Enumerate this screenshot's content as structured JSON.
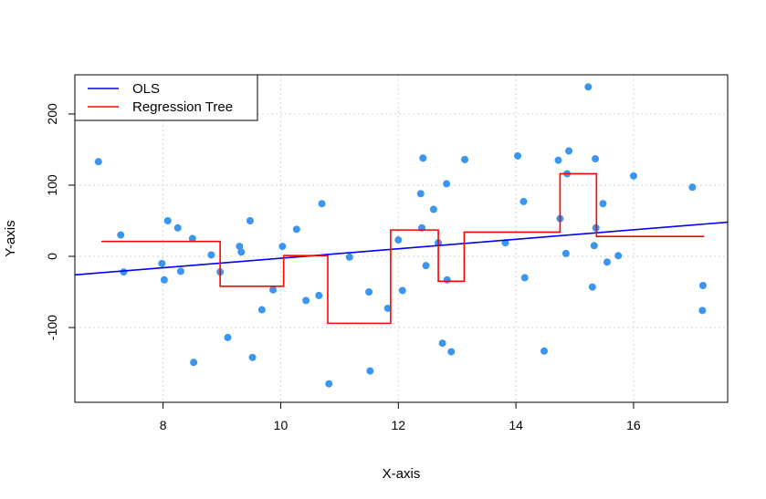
{
  "chart_data": {
    "type": "scatter",
    "title": "",
    "xlabel": "X-axis",
    "ylabel": "Y-axis",
    "xlim": [
      6.5,
      17.6
    ],
    "ylim": [
      -205,
      255
    ],
    "xticks": [
      8,
      10,
      12,
      14,
      16
    ],
    "yticks": [
      -100,
      0,
      100,
      200
    ],
    "grid": true,
    "legend_position": "top-left",
    "colors": {
      "points": "#3a96f0",
      "ols": "#0000ff",
      "tree": "#ff0000",
      "grid": "#d3d3d3"
    },
    "legend": [
      {
        "label": "OLS",
        "color": "#0000ff"
      },
      {
        "label": "Regression Tree",
        "color": "#ff0000"
      }
    ],
    "points": {
      "x": [
        6.9,
        7.28,
        7.33,
        7.98,
        8.02,
        8.08,
        8.25,
        8.3,
        8.5,
        8.52,
        8.82,
        8.97,
        9.1,
        9.3,
        9.33,
        9.48,
        9.52,
        9.68,
        9.87,
        10.03,
        10.27,
        10.43,
        10.65,
        10.7,
        10.82,
        11.17,
        11.5,
        11.52,
        11.82,
        12.0,
        12.07,
        12.38,
        12.4,
        12.42,
        12.47,
        12.6,
        12.68,
        12.75,
        12.82,
        12.83,
        12.9,
        13.13,
        13.82,
        14.03,
        14.13,
        14.15,
        14.48,
        14.72,
        14.75,
        14.85,
        14.87,
        14.9,
        15.23,
        15.3,
        15.33,
        15.35,
        15.36,
        15.48,
        15.55,
        15.74,
        16.0,
        17.0,
        17.17,
        17.18
      ],
      "y": [
        133,
        30,
        -22,
        -10,
        -33,
        50,
        40,
        -21,
        25,
        -149,
        2,
        -22,
        -114,
        14,
        6,
        50,
        -142,
        -75,
        -47,
        14,
        38,
        -62,
        -55,
        74,
        -179,
        -1,
        -50,
        -161,
        -73,
        23,
        -48,
        88,
        40,
        138,
        -13,
        66,
        19,
        -122,
        102,
        -33,
        -134,
        136,
        19,
        141,
        77,
        -30,
        -133,
        135,
        53,
        4,
        116,
        148,
        238,
        -43,
        15,
        137,
        40,
        74,
        -8,
        1,
        113,
        97,
        -76,
        -41
      ]
    },
    "ols_line": {
      "x": [
        6.5,
        17.6
      ],
      "y": [
        -26,
        48
      ]
    },
    "regression_tree": {
      "x": [
        6.95,
        8.97,
        8.97,
        10.05,
        10.05,
        10.8,
        10.8,
        11.87,
        11.87,
        12.68,
        12.68,
        13.12,
        13.12,
        14.75,
        14.75,
        15.37,
        15.37,
        17.2
      ],
      "y": [
        21,
        21,
        -42,
        -42,
        1,
        1,
        -94,
        -94,
        37,
        37,
        -35,
        -35,
        34,
        34,
        116,
        116,
        28,
        28
      ]
    }
  }
}
